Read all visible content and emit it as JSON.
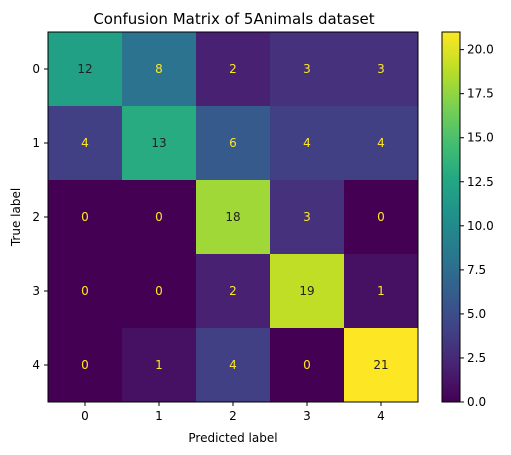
{
  "chart_data": {
    "type": "heatmap",
    "title": "Confusion Matrix of 5Animals dataset",
    "xlabel": "Predicted label",
    "ylabel": "True label",
    "x_categories": [
      "0",
      "1",
      "2",
      "3",
      "4"
    ],
    "y_categories": [
      "0",
      "1",
      "2",
      "3",
      "4"
    ],
    "values": [
      [
        12,
        8,
        2,
        3,
        3
      ],
      [
        4,
        13,
        6,
        4,
        4
      ],
      [
        0,
        0,
        18,
        3,
        0
      ],
      [
        0,
        0,
        2,
        19,
        1
      ],
      [
        0,
        1,
        4,
        0,
        21
      ]
    ],
    "colormap": "viridis",
    "vmin": 0,
    "vmax": 21,
    "colorbar_ticks": [
      0.0,
      2.5,
      5.0,
      7.5,
      10.0,
      12.5,
      15.0,
      17.5,
      20.0
    ],
    "colorbar_tick_labels": [
      "0.0",
      "2.5",
      "5.0",
      "7.5",
      "10.0",
      "12.5",
      "15.0",
      "17.5",
      "20.0"
    ],
    "text_color_dark": "#222222",
    "text_color_light": "#fde725"
  }
}
